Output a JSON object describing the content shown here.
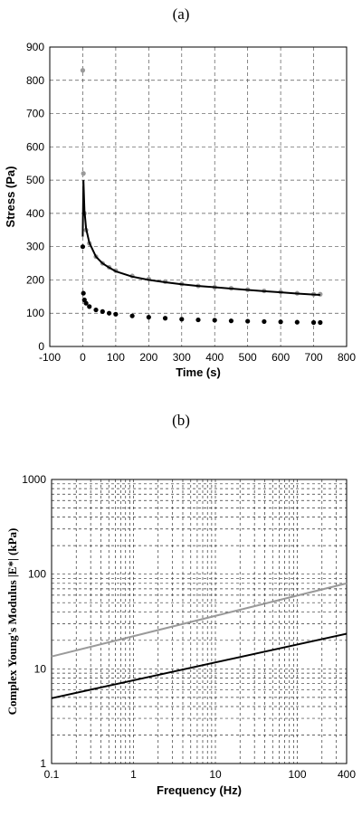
{
  "panels": {
    "a": {
      "label": "(a)"
    },
    "b": {
      "label": "(b)"
    }
  },
  "chart_data": [
    {
      "type": "scatter",
      "panel": "(a)",
      "xlabel": "Time (s)",
      "ylabel": "Stress (Pa)",
      "xlim": [
        -100,
        800
      ],
      "ylim": [
        0,
        900
      ],
      "xticks": [
        -100,
        0,
        100,
        200,
        300,
        400,
        500,
        600,
        700,
        800
      ],
      "yticks": [
        0,
        100,
        200,
        300,
        400,
        500,
        600,
        700,
        800,
        900
      ],
      "grid": true,
      "series": [
        {
          "style": "gray-points",
          "color": "#9a9a9a",
          "x": [
            0,
            2,
            5,
            10,
            20,
            40,
            60,
            80,
            100,
            150,
            200,
            250,
            300,
            350,
            400,
            450,
            500,
            550,
            600,
            650,
            700,
            720
          ],
          "y": [
            830,
            520,
            400,
            350,
            310,
            270,
            250,
            238,
            228,
            212,
            203,
            195,
            188,
            182,
            178,
            175,
            171,
            167,
            164,
            160,
            157,
            157
          ]
        },
        {
          "style": "black-fit-line",
          "color": "#000000",
          "x": [
            0,
            2,
            5,
            10,
            20,
            40,
            60,
            80,
            100,
            150,
            200,
            250,
            300,
            350,
            400,
            450,
            500,
            550,
            600,
            650,
            700,
            720
          ],
          "y": [
            330,
            500,
            410,
            355,
            312,
            270,
            250,
            237,
            226,
            210,
            200,
            193,
            187,
            182,
            178,
            174,
            170,
            166,
            163,
            159,
            156,
            155
          ]
        },
        {
          "style": "black-points",
          "color": "#000000",
          "x": [
            0,
            2,
            5,
            10,
            20,
            40,
            60,
            80,
            100,
            150,
            200,
            250,
            300,
            350,
            400,
            450,
            500,
            550,
            600,
            650,
            700,
            720
          ],
          "y": [
            300,
            160,
            140,
            130,
            120,
            110,
            105,
            100,
            97,
            92,
            88,
            85,
            82,
            80,
            79,
            77,
            76,
            75,
            74,
            73,
            72,
            72
          ]
        }
      ]
    },
    {
      "type": "line",
      "panel": "(b)",
      "xlabel": "Frequency (Hz)",
      "ylabel": "Complex Young's Modulus |E*| (kPa)",
      "xscale": "log",
      "yscale": "log",
      "xlim": [
        0.1,
        400
      ],
      "ylim": [
        1,
        1000
      ],
      "xticklabels": [
        "0.1",
        "1",
        "10",
        "100",
        "400"
      ],
      "yticklabels": [
        "1",
        "10",
        "100",
        "1000"
      ],
      "grid": true,
      "series": [
        {
          "style": "gray-line",
          "color": "#9a9a9a",
          "x": [
            0.1,
            400
          ],
          "y": [
            13.5,
            80
          ]
        },
        {
          "style": "black-line",
          "color": "#000000",
          "x": [
            0.1,
            400
          ],
          "y": [
            4.9,
            23.5
          ]
        }
      ]
    }
  ]
}
